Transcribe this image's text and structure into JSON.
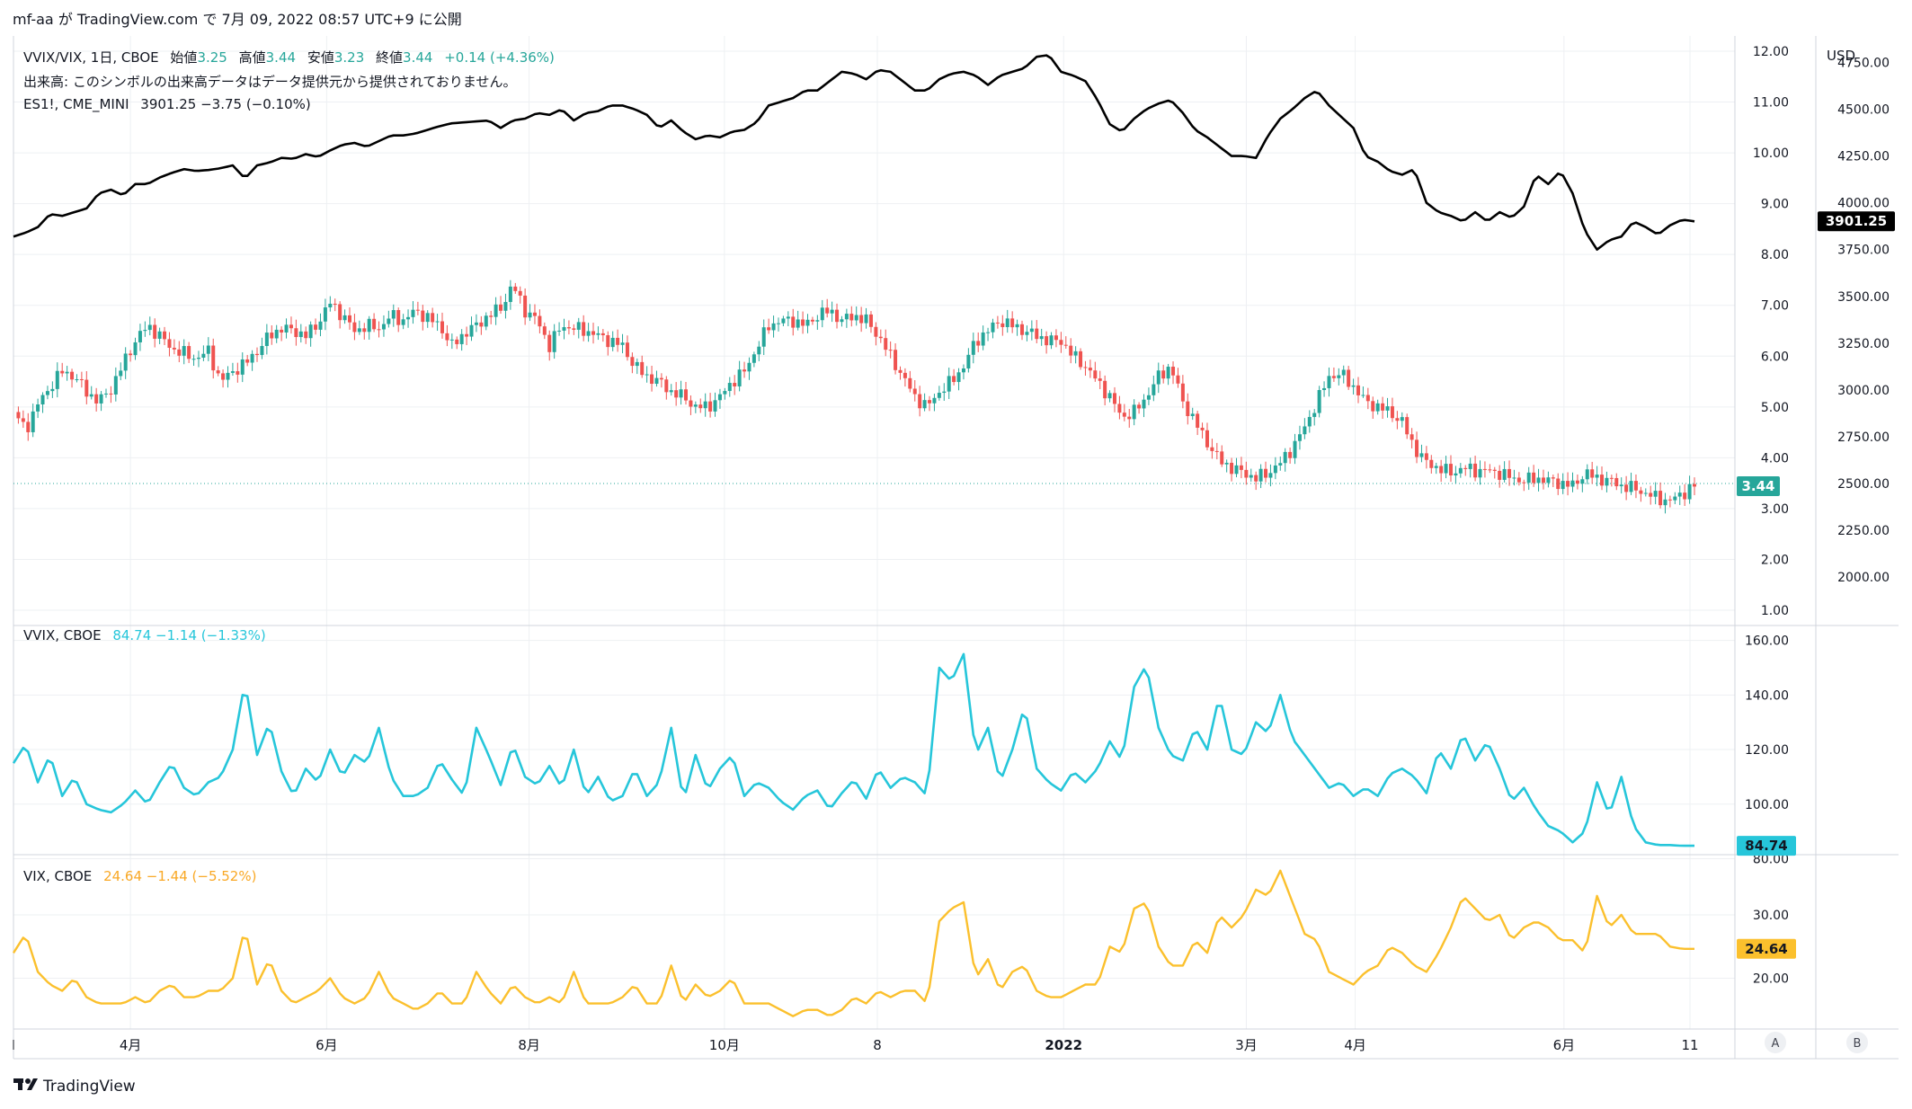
{
  "header": {
    "title": "mf-aa が TradingView.com で 7月 09, 2022 08:57 UTC+9 に公開"
  },
  "footer": {
    "brand": "TradingView"
  },
  "currency": "USD",
  "scale_buttons": [
    "A",
    "B"
  ],
  "colors": {
    "up": "#26a69a",
    "down": "#ef5350",
    "es": "#000000",
    "vvix": "#26c6da",
    "vix": "#fbc02d",
    "grid": "#eef0f3",
    "border": "#d1d4dc",
    "text": "#131722"
  },
  "legend": {
    "main_symbol": "VVIX/VIX, 1日, CBOE",
    "open_label": "始値",
    "open": "3.25",
    "high_label": "高値",
    "high": "3.44",
    "low_label": "安値",
    "low": "3.23",
    "close_label": "終値",
    "close": "3.44",
    "change": "+0.14 (+4.36%)",
    "volume_note": "出来高: このシンボルの出来高データはデータ提供元から提供されておりません。",
    "es_symbol": "ES1!, CME_MINI",
    "es_values": "3901.25  −3.75 (−0.10%)",
    "vvix_symbol": "VVIX, CBOE",
    "vvix_values": "84.74  −1.14 (−1.33%)",
    "vix_symbol": "VIX, CBOE",
    "vix_values": "24.64  −1.44 (−5.52%)"
  },
  "price_badges": {
    "ratio": "3.44",
    "es": "3901.25",
    "vvix": "84.74",
    "vix": "24.64"
  },
  "chart_data": [
    {
      "type": "candlestick",
      "title": "VVIX/VIX, 1日, CBOE",
      "y_ticks": [
        "12.00",
        "11.00",
        "10.00",
        "9.00",
        "8.00",
        "7.00",
        "6.00",
        "5.00",
        "4.00",
        "3.00",
        "2.00",
        "1.00"
      ],
      "ylim": [
        1,
        12
      ],
      "x_ticks": [
        "4月",
        "6月",
        "8月",
        "10月",
        "8",
        "2022",
        "3月",
        "4月",
        "6月",
        "11"
      ],
      "anchors_x": [
        0,
        10,
        20,
        30,
        40,
        50,
        60,
        70,
        80,
        90,
        100,
        110,
        120,
        130,
        140,
        150,
        160,
        170,
        180,
        190,
        200,
        210,
        220,
        230,
        240,
        250,
        260,
        270,
        280,
        290,
        300,
        310,
        320,
        330,
        340,
        350,
        360,
        370,
        380,
        390,
        400,
        410,
        420,
        430,
        440,
        450,
        460,
        470,
        480,
        490,
        500,
        510,
        520,
        530,
        540,
        550,
        560,
        570,
        580,
        590,
        600,
        610,
        620,
        630,
        640,
        650,
        660,
        670,
        680,
        690,
        700,
        710,
        720,
        730,
        740,
        750,
        760,
        770,
        780,
        790,
        800,
        810,
        820,
        830,
        840,
        850,
        860,
        870,
        880,
        890,
        900,
        910,
        920,
        930,
        940,
        950,
        960,
        970,
        980,
        990,
        1000,
        1010,
        1020,
        1030,
        1040,
        1050,
        1060,
        1070,
        1080,
        1090,
        1100,
        1110,
        1120,
        1130,
        1140,
        1150,
        1160,
        1170,
        1180,
        1190,
        1200,
        1210,
        1220,
        1230,
        1240,
        1250,
        1260,
        1270,
        1280,
        1290,
        1300,
        1310,
        1320,
        1330,
        1340,
        1350,
        1360,
        1370,
        1380
      ],
      "anchors_close": [
        4.9,
        4.55,
        5.05,
        5.4,
        5.7,
        5.6,
        5.3,
        5.1,
        5.35,
        5.85,
        6.3,
        6.6,
        6.4,
        6.15,
        6.05,
        5.95,
        6.1,
        5.5,
        5.7,
        5.85,
        6.1,
        6.4,
        6.55,
        6.5,
        6.4,
        6.65,
        7.05,
        6.8,
        6.5,
        6.6,
        6.55,
        6.8,
        6.7,
        6.9,
        6.75,
        6.6,
        6.2,
        6.45,
        6.6,
        6.8,
        6.95,
        7.4,
        6.9,
        6.7,
        6.2,
        6.6,
        6.55,
        6.5,
        6.4,
        6.3,
        6.2,
        5.8,
        5.6,
        5.5,
        5.3,
        5.2,
        5.0,
        5.0,
        5.2,
        5.5,
        5.7,
        6.15,
        6.6,
        6.7,
        6.7,
        6.6,
        6.8,
        6.9,
        6.7,
        6.8,
        6.7,
        6.4,
        6.0,
        5.6,
        5.2,
        5.0,
        5.3,
        5.5,
        5.8,
        6.3,
        6.5,
        6.7,
        6.6,
        6.5,
        6.4,
        6.3,
        6.3,
        6.0,
        5.8,
        5.5,
        5.2,
        4.8,
        4.9,
        5.2,
        5.6,
        5.8,
        5.1,
        4.7,
        4.3,
        3.95,
        3.8,
        3.7,
        3.6,
        3.7,
        3.9,
        4.2,
        4.6,
        5.1,
        5.6,
        5.65,
        5.4,
        5.1,
        5.0,
        4.9,
        4.7,
        4.2,
        3.9,
        3.8,
        3.7,
        3.8,
        3.75,
        3.75,
        3.7,
        3.6,
        3.55,
        3.6,
        3.55,
        3.5,
        3.45,
        3.7,
        3.6,
        3.55,
        3.45,
        3.4,
        3.3,
        3.2,
        3.15,
        3.3,
        3.44
      ]
    },
    {
      "type": "line",
      "series": [
        {
          "name": "ES1!, CME_MINI"
        }
      ],
      "y_ticks": [
        "4750.00",
        "4500.00",
        "4250.00",
        "4000.00",
        "3750.00",
        "3500.00",
        "3250.00",
        "3000.00",
        "2750.00",
        "2500.00",
        "2250.00",
        "2000.00"
      ],
      "ylim": [
        1823,
        4810
      ],
      "anchors_x": [
        0,
        10,
        20,
        30,
        40,
        50,
        60,
        70,
        80,
        90,
        100,
        110,
        120,
        130,
        140,
        150,
        160,
        170,
        180,
        190,
        200,
        210,
        220,
        230,
        240,
        250,
        260,
        270,
        280,
        290,
        300,
        310,
        320,
        330,
        340,
        350,
        360,
        370,
        380,
        390,
        400,
        410,
        420,
        430,
        440,
        450,
        460,
        470,
        480,
        490,
        500,
        510,
        520,
        530,
        540,
        550,
        560,
        570,
        580,
        590,
        600,
        610,
        620,
        630,
        640,
        650,
        660,
        670,
        680,
        690,
        700,
        710,
        720,
        730,
        740,
        750,
        760,
        770,
        780,
        790,
        800,
        810,
        820,
        830,
        840,
        850,
        860,
        870,
        880,
        890,
        900,
        910,
        920,
        930,
        940,
        950,
        960,
        970,
        980,
        990,
        1000,
        1010,
        1020,
        1030,
        1040,
        1050,
        1060,
        1070,
        1080,
        1090,
        1100,
        1110,
        1120,
        1130,
        1140,
        1150,
        1160,
        1170,
        1180,
        1190,
        1200,
        1210,
        1220,
        1230,
        1240,
        1250,
        1260,
        1270,
        1280,
        1290,
        1300,
        1310,
        1320,
        1330,
        1340,
        1350,
        1360,
        1370,
        1380
      ],
      "anchors_y": [
        3820,
        3840,
        3870,
        3940,
        3930,
        3950,
        3970,
        4050,
        4070,
        4040,
        4100,
        4100,
        4135,
        4160,
        4180,
        4170,
        4175,
        4185,
        4200,
        4130,
        4200,
        4215,
        4240,
        4235,
        4260,
        4245,
        4280,
        4310,
        4320,
        4300,
        4330,
        4360,
        4360,
        4370,
        4390,
        4410,
        4425,
        4430,
        4435,
        4440,
        4400,
        4440,
        4450,
        4480,
        4470,
        4500,
        4440,
        4480,
        4490,
        4520,
        4520,
        4500,
        4470,
        4400,
        4440,
        4380,
        4340,
        4360,
        4350,
        4380,
        4390,
        4430,
        4520,
        4540,
        4560,
        4600,
        4600,
        4650,
        4700,
        4690,
        4660,
        4710,
        4700,
        4650,
        4600,
        4600,
        4660,
        4690,
        4700,
        4680,
        4630,
        4680,
        4700,
        4720,
        4780,
        4790,
        4700,
        4680,
        4650,
        4550,
        4420,
        4380,
        4450,
        4500,
        4530,
        4550,
        4480,
        4390,
        4350,
        4300,
        4250,
        4250,
        4240,
        4360,
        4450,
        4500,
        4560,
        4600,
        4520,
        4460,
        4400,
        4250,
        4220,
        4170,
        4150,
        4180,
        4000,
        3950,
        3930,
        3900,
        3950,
        3900,
        3950,
        3920,
        3980,
        4150,
        4100,
        4170,
        4050,
        3850,
        3750,
        3800,
        3820,
        3900,
        3870,
        3830,
        3880,
        3910,
        3901
      ]
    },
    {
      "type": "line",
      "series": [
        {
          "name": "VVIX, CBOE"
        }
      ],
      "y_ticks": [
        "160.00",
        "140.00",
        "120.00",
        "100.00",
        "80.00"
      ],
      "ylim": [
        80.5,
        162.5
      ],
      "anchors_x": [
        0,
        10,
        20,
        30,
        40,
        50,
        60,
        70,
        80,
        90,
        100,
        110,
        120,
        130,
        140,
        150,
        160,
        170,
        180,
        190,
        200,
        210,
        220,
        230,
        240,
        250,
        260,
        270,
        280,
        290,
        300,
        310,
        320,
        330,
        340,
        350,
        360,
        370,
        380,
        390,
        400,
        410,
        420,
        430,
        440,
        450,
        460,
        470,
        480,
        490,
        500,
        510,
        520,
        530,
        540,
        550,
        560,
        570,
        580,
        590,
        600,
        610,
        620,
        630,
        640,
        650,
        660,
        670,
        680,
        690,
        700,
        710,
        720,
        730,
        740,
        750,
        760,
        770,
        780,
        790,
        800,
        810,
        820,
        830,
        840,
        850,
        860,
        870,
        880,
        890,
        900,
        910,
        920,
        930,
        940,
        950,
        960,
        970,
        980,
        990,
        1000,
        1010,
        1020,
        1030,
        1040,
        1050,
        1060,
        1070,
        1080,
        1090,
        1100,
        1110,
        1120,
        1130,
        1140,
        1150,
        1160,
        1170,
        1180,
        1190,
        1200,
        1210,
        1220,
        1230,
        1240,
        1250,
        1260,
        1270,
        1280,
        1290,
        1300,
        1310,
        1320,
        1330,
        1340,
        1350,
        1360,
        1370,
        1380
      ],
      "anchors_y": [
        115,
        122,
        108,
        118,
        103,
        110,
        100,
        98,
        97,
        100,
        105,
        100,
        108,
        115,
        106,
        103,
        108,
        110,
        120,
        145,
        118,
        130,
        112,
        103,
        113,
        108,
        120,
        110,
        118,
        115,
        128,
        110,
        103,
        103,
        106,
        116,
        109,
        103,
        128,
        118,
        107,
        122,
        110,
        107,
        114,
        106,
        120,
        103,
        110,
        101,
        103,
        113,
        103,
        108,
        128,
        101,
        118,
        105,
        113,
        118,
        103,
        108,
        106,
        101,
        98,
        103,
        105,
        98,
        104,
        109,
        102,
        113,
        106,
        110,
        108,
        103,
        150,
        145,
        155,
        118,
        128,
        108,
        120,
        136,
        113,
        108,
        105,
        112,
        108,
        113,
        123,
        116,
        143,
        151,
        128,
        118,
        116,
        128,
        120,
        140,
        120,
        118,
        130,
        126,
        140,
        124,
        118,
        112,
        106,
        108,
        103,
        106,
        103,
        111,
        113,
        110,
        104,
        120,
        113,
        126,
        116,
        123,
        113,
        101,
        106,
        98,
        92,
        90,
        86,
        90,
        108,
        96,
        110,
        92,
        86,
        85,
        85,
        84.74,
        84.74
      ]
    },
    {
      "type": "line",
      "series": [
        {
          "name": "VIX, CBOE"
        }
      ],
      "y_ticks": [
        "30.00",
        "20.00"
      ],
      "ylim": [
        11.97,
        37.96
      ],
      "anchors_x": [
        0,
        10,
        20,
        30,
        40,
        50,
        60,
        70,
        80,
        90,
        100,
        110,
        120,
        130,
        140,
        150,
        160,
        170,
        180,
        190,
        200,
        210,
        220,
        230,
        240,
        250,
        260,
        270,
        280,
        290,
        300,
        310,
        320,
        330,
        340,
        350,
        360,
        370,
        380,
        390,
        400,
        410,
        420,
        430,
        440,
        450,
        460,
        470,
        480,
        490,
        500,
        510,
        520,
        530,
        540,
        550,
        560,
        570,
        580,
        590,
        600,
        610,
        620,
        630,
        640,
        650,
        660,
        670,
        680,
        690,
        700,
        710,
        720,
        730,
        740,
        750,
        760,
        770,
        780,
        790,
        800,
        810,
        820,
        830,
        840,
        850,
        860,
        870,
        880,
        890,
        900,
        910,
        920,
        930,
        940,
        950,
        960,
        970,
        980,
        990,
        1000,
        1010,
        1020,
        1030,
        1040,
        1050,
        1060,
        1070,
        1080,
        1090,
        1100,
        1110,
        1120,
        1130,
        1140,
        1150,
        1160,
        1170,
        1180,
        1190,
        1200,
        1210,
        1220,
        1230,
        1240,
        1250,
        1260,
        1270,
        1280,
        1290,
        1300,
        1310,
        1320,
        1330,
        1340,
        1350,
        1360,
        1370,
        1380
      ],
      "anchors_y": [
        24,
        27,
        21,
        19,
        18,
        20,
        17,
        16,
        16,
        16,
        17,
        16,
        18,
        19,
        17,
        17,
        18,
        18,
        20,
        28,
        19,
        23,
        18,
        16,
        17,
        18,
        20,
        17,
        16,
        17,
        21,
        17,
        16,
        15,
        16,
        18,
        16,
        16,
        21,
        18,
        16,
        19,
        17,
        16,
        17,
        16,
        21,
        16,
        16,
        16,
        17,
        19,
        16,
        16,
        22,
        16,
        19,
        17,
        18,
        20,
        16,
        16,
        16,
        15,
        14,
        15,
        15,
        14,
        15,
        17,
        16,
        18,
        17,
        18,
        18,
        16,
        29,
        31,
        32,
        20,
        23,
        18,
        21,
        22,
        18,
        17,
        17,
        18,
        19,
        19,
        25,
        24,
        31,
        32,
        25,
        22,
        22,
        26,
        24,
        30,
        28,
        30,
        34,
        33,
        37,
        32,
        27,
        26,
        21,
        20,
        19,
        21,
        22,
        25,
        24,
        22,
        21,
        24,
        28,
        33,
        31,
        29,
        30,
        26,
        28,
        29,
        28,
        26,
        26,
        24,
        33,
        28,
        30,
        27,
        27,
        27,
        25,
        24.64,
        24.64
      ]
    }
  ]
}
